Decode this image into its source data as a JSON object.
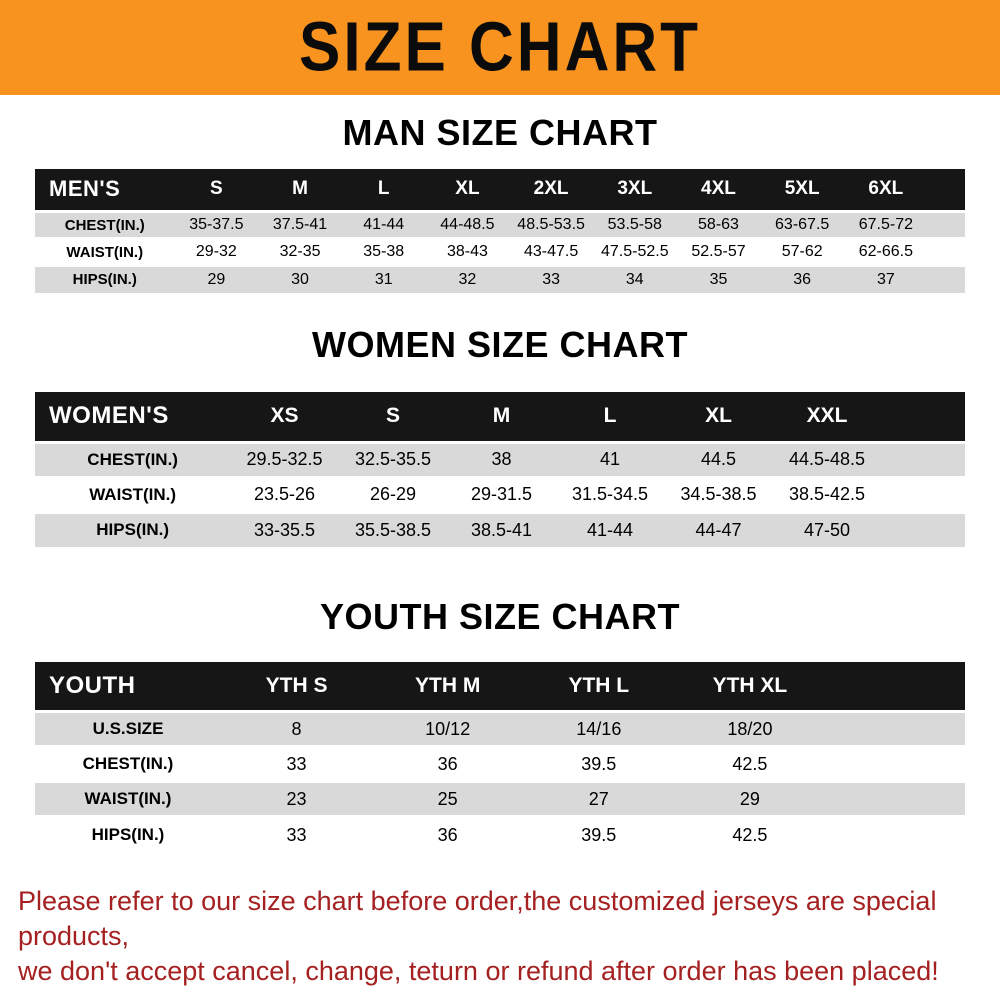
{
  "banner": {
    "title": "SIZE CHART"
  },
  "sections": [
    {
      "heading": "MAN SIZE CHART",
      "table": {
        "header": [
          "MEN'S",
          "S",
          "M",
          "L",
          "XL",
          "2XL",
          "3XL",
          "4XL",
          "5XL",
          "6XL"
        ],
        "rows": [
          [
            "CHEST(IN.)",
            "35-37.5",
            "37.5-41",
            "41-44",
            "44-48.5",
            "48.5-53.5",
            "53.5-58",
            "58-63",
            "63-67.5",
            "67.5-72"
          ],
          [
            "WAIST(IN.)",
            "29-32",
            "32-35",
            "35-38",
            "38-43",
            "43-47.5",
            "47.5-52.5",
            "52.5-57",
            "57-62",
            "62-66.5"
          ],
          [
            "HIPS(IN.)",
            "29",
            "30",
            "31",
            "32",
            "33",
            "34",
            "35",
            "36",
            "37"
          ]
        ]
      }
    },
    {
      "heading": "WOMEN SIZE CHART",
      "table": {
        "header": [
          "WOMEN'S",
          "XS",
          "S",
          "M",
          "L",
          "XL",
          "XXL"
        ],
        "rows": [
          [
            "CHEST(IN.)",
            "29.5-32.5",
            "32.5-35.5",
            "38",
            "41",
            "44.5",
            "44.5-48.5"
          ],
          [
            "WAIST(IN.)",
            "23.5-26",
            "26-29",
            "29-31.5",
            "31.5-34.5",
            "34.5-38.5",
            "38.5-42.5"
          ],
          [
            "HIPS(IN.)",
            "33-35.5",
            "35.5-38.5",
            "38.5-41",
            "41-44",
            "44-47",
            "47-50"
          ]
        ]
      }
    },
    {
      "heading": "YOUTH SIZE CHART",
      "table": {
        "header": [
          "YOUTH",
          "YTH S",
          "YTH M",
          "YTH L",
          "YTH XL"
        ],
        "rows": [
          [
            "U.S.SIZE",
            "8",
            "10/12",
            "14/16",
            "18/20"
          ],
          [
            "CHEST(IN.)",
            "33",
            "36",
            "39.5",
            "42.5"
          ],
          [
            "WAIST(IN.)",
            "23",
            "25",
            "27",
            "29"
          ],
          [
            "HIPS(IN.)",
            "33",
            "36",
            "39.5",
            "42.5"
          ]
        ]
      }
    }
  ],
  "disclaimer": {
    "line1": "Please refer to our size chart before order,the customized jerseys are special products,",
    "line2": "we don't accept cancel, change, teturn or refund after order has been placed!"
  },
  "theme": {
    "banner_bg": "#F7931E",
    "banner_text": "#0B0B0B",
    "table_header_bg": "#161616",
    "table_header_text": "#FFFFFF",
    "row_alt_bg": "#D9D9D9",
    "row_bg": "#FFFFFF",
    "text": "#000000",
    "disclaimer_text": "#A52121"
  }
}
